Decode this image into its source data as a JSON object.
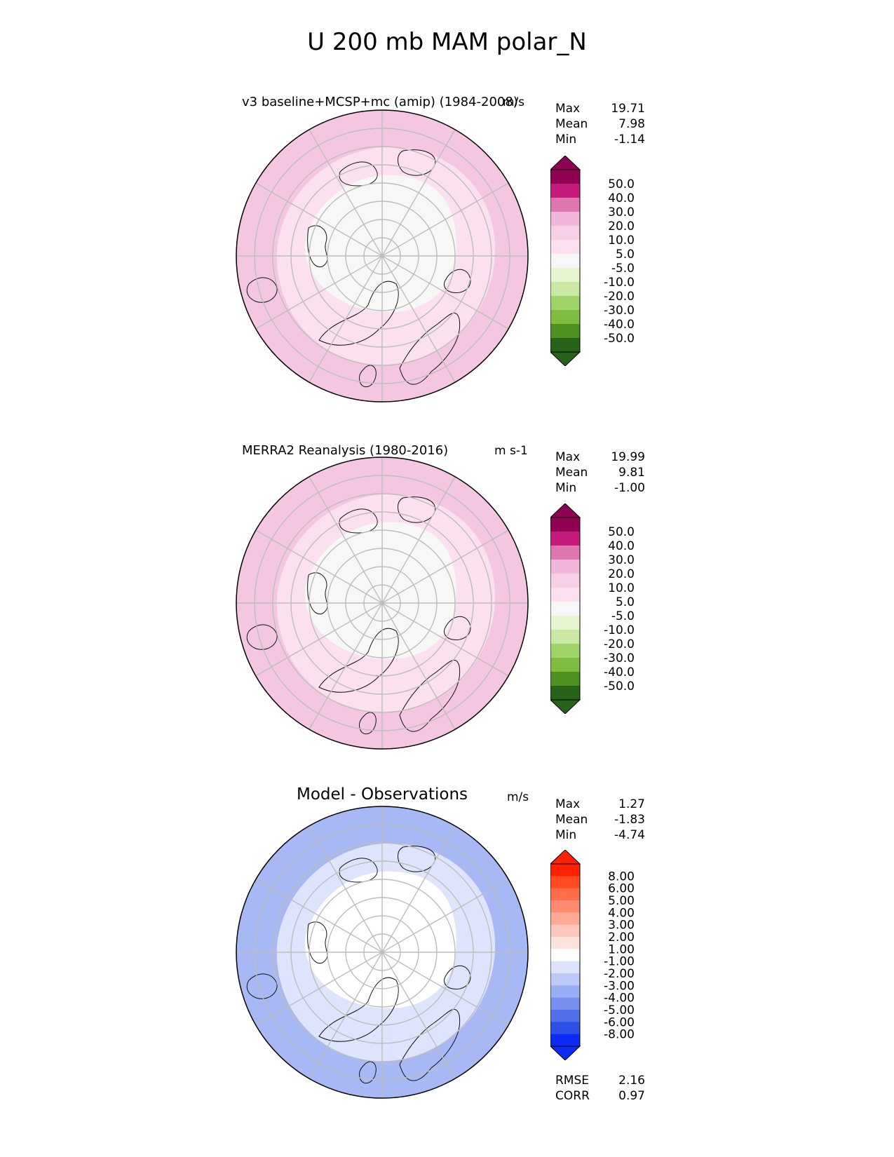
{
  "figure": {
    "title": "U 200 mb MAM polar_N"
  },
  "panels": [
    {
      "title": "v3 baseline+MCSP+mc (amip) (1984-2008)",
      "units": "m/s",
      "stats": [
        {
          "label": "Max",
          "value": "19.71"
        },
        {
          "label": "Mean",
          "value": "7.98"
        },
        {
          "label": "Min",
          "value": "-1.14"
        }
      ],
      "colorbar": {
        "ticks": [
          "50.0",
          "40.0",
          "30.0",
          "20.0",
          "10.0",
          "5.0",
          "-5.0",
          "-10.0",
          "-20.0",
          "-30.0",
          "-40.0",
          "-50.0"
        ],
        "colors": [
          "#8e0152",
          "#c51b7d",
          "#de77ae",
          "#f1b6da",
          "#f7d0e7",
          "#fde0ef",
          "#f7f7f7",
          "#e6f5d0",
          "#c9e8a3",
          "#a1d36b",
          "#7fbc41",
          "#4d9221",
          "#276419"
        ],
        "top_color": "#8e0152",
        "bottom_color": "#276419"
      },
      "map_colors": {
        "outer": "#f4c6e2",
        "mid": "#fbe0ef",
        "inner": "#f7f7f5"
      }
    },
    {
      "title": "MERRA2 Reanalysis (1980-2016)",
      "units": "m s-1",
      "stats": [
        {
          "label": "Max",
          "value": "19.99"
        },
        {
          "label": "Mean",
          "value": "9.81"
        },
        {
          "label": "Min",
          "value": "-1.00"
        }
      ],
      "colorbar": {
        "ticks": [
          "50.0",
          "40.0",
          "30.0",
          "20.0",
          "10.0",
          "5.0",
          "-5.0",
          "-10.0",
          "-20.0",
          "-30.0",
          "-40.0",
          "-50.0"
        ],
        "colors": [
          "#8e0152",
          "#c51b7d",
          "#de77ae",
          "#f1b6da",
          "#f7d0e7",
          "#fde0ef",
          "#f7f7f7",
          "#e6f5d0",
          "#c9e8a3",
          "#a1d36b",
          "#7fbc41",
          "#4d9221",
          "#276419"
        ],
        "top_color": "#8e0152",
        "bottom_color": "#276419"
      },
      "map_colors": {
        "outer": "#f4c6e2",
        "mid": "#fbe0ef",
        "inner": "#f7f7f5"
      }
    },
    {
      "title": "Model - Observations",
      "units": "m/s",
      "stats": [
        {
          "label": "Max",
          "value": "1.27"
        },
        {
          "label": "Mean",
          "value": "-1.83"
        },
        {
          "label": "Min",
          "value": "-4.74"
        }
      ],
      "colorbar": {
        "ticks": [
          "8.00",
          "6.00",
          "5.00",
          "4.00",
          "3.00",
          "2.00",
          "1.00",
          "-1.00",
          "-2.00",
          "-3.00",
          "-4.00",
          "-5.00",
          "-6.00",
          "-8.00"
        ],
        "colors": [
          "#ff2200",
          "#ff4a22",
          "#ff6d4a",
          "#ff8c70",
          "#ffaa96",
          "#ffc7bb",
          "#ffe4de",
          "#ffffff",
          "#dce3fb",
          "#bdc9f7",
          "#9aaef3",
          "#7790ef",
          "#5270ea",
          "#2f50e6",
          "#0a2cf5"
        ],
        "top_color": "#ff2200",
        "bottom_color": "#0a2cf5"
      },
      "map_colors": {
        "outer": "#a7b8f4",
        "mid": "#dde4fb",
        "inner": "#ffffff"
      },
      "extra_stats": [
        {
          "label": "RMSE",
          "value": "2.16"
        },
        {
          "label": "CORR",
          "value": "0.97"
        }
      ]
    }
  ]
}
